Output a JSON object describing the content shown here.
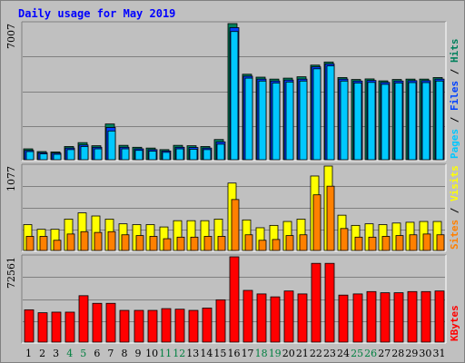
{
  "chart_data": {
    "type": "bar",
    "title": "Daily usage for May 2019",
    "colors": {
      "background": "#C0C0C0",
      "title": "#0000FF",
      "hits": "#00805C",
      "files": "#0040FF",
      "pages": "#00C8FF",
      "visits": "#FFFF00",
      "sites": "#FF8000",
      "kbytes": "#FF0000",
      "weekend_label": "#008040",
      "weekday_label": "#000000"
    },
    "days": [
      "1",
      "2",
      "3",
      "4",
      "5",
      "6",
      "7",
      "8",
      "9",
      "10",
      "11",
      "12",
      "13",
      "14",
      "15",
      "16",
      "17",
      "18",
      "19",
      "20",
      "21",
      "22",
      "23",
      "24",
      "25",
      "26",
      "27",
      "28",
      "29",
      "30",
      "31"
    ],
    "weekend_days": [
      "4",
      "5",
      "11",
      "12",
      "18",
      "19",
      "25",
      "26"
    ],
    "panels": [
      {
        "name": "usage",
        "max_label": "7007",
        "ymax": 7007,
        "legend": [
          "Pages",
          "Files",
          "Hits"
        ],
        "series": [
          {
            "name": "Hits",
            "values": [
              560,
              420,
              400,
              680,
              880,
              720,
              1840,
              740,
              640,
              600,
              520,
              740,
              720,
              680,
              1040,
              7007,
              4400,
              4250,
              4150,
              4200,
              4270,
              4870,
              5030,
              4230,
              4130,
              4160,
              4060,
              4130,
              4150,
              4150,
              4230
            ]
          },
          {
            "name": "Files",
            "values": [
              480,
              360,
              340,
              600,
              760,
              640,
              1660,
              640,
              560,
              520,
              450,
              640,
              630,
              600,
              920,
              6800,
              4300,
              4150,
              4050,
              4100,
              4150,
              4780,
              4930,
              4150,
              4050,
              4080,
              3980,
              4050,
              4070,
              4070,
              4150
            ]
          },
          {
            "name": "Pages",
            "values": [
              420,
              300,
              280,
              520,
              680,
              560,
              1480,
              560,
              480,
              440,
              380,
              560,
              540,
              520,
              800,
              6600,
              4200,
              4050,
              3950,
              4000,
              4050,
              4680,
              4830,
              4050,
              3950,
              3980,
              3880,
              3950,
              3970,
              3970,
              4050
            ]
          }
        ]
      },
      {
        "name": "visits",
        "max_label": "1077",
        "ymax": 1077,
        "legend": [
          "Sites",
          "Visits"
        ],
        "series": [
          {
            "name": "Visits",
            "values": [
              330,
              270,
              270,
              400,
              480,
              440,
              400,
              340,
              330,
              330,
              300,
              380,
              380,
              380,
              400,
              860,
              390,
              290,
              320,
              370,
              400,
              950,
              1077,
              450,
              320,
              340,
              330,
              350,
              360,
              370,
              370
            ]
          },
          {
            "name": "Sites",
            "values": [
              180,
              180,
              130,
              210,
              240,
              230,
              240,
              200,
              190,
              180,
              150,
              170,
              170,
              180,
              180,
              650,
              200,
              130,
              140,
              190,
              200,
              710,
              820,
              280,
              170,
              170,
              180,
              190,
              200,
              210,
              200
            ]
          }
        ]
      },
      {
        "name": "kbytes",
        "max_label": "72561",
        "ymax": 72561,
        "legend": [
          "KBytes"
        ],
        "series": [
          {
            "name": "KBytes",
            "values": [
              27500,
              25000,
              25500,
              25500,
              39500,
              33000,
              33000,
              27000,
              27000,
              27000,
              28500,
              28000,
              27000,
              29000,
              36000,
              72561,
              44000,
              41000,
              38500,
              43500,
              41000,
              67000,
              67000,
              40000,
              41000,
              43000,
              42000,
              42000,
              43000,
              43000,
              43500
            ]
          }
        ]
      }
    ]
  }
}
